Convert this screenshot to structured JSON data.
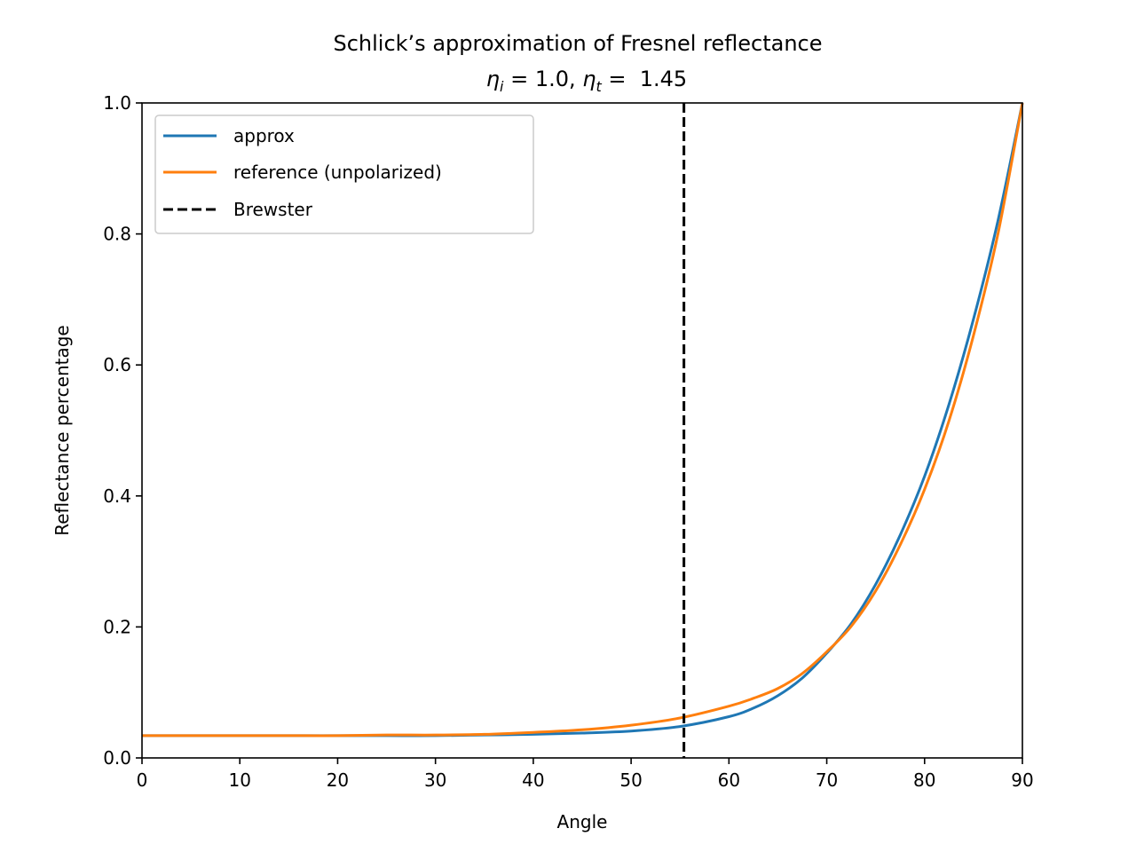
{
  "chart_data": {
    "type": "line",
    "title": "Schlick’s approximation of Fresnel reflectance",
    "subtitle": {
      "eta_i_symbol": "η",
      "eta_i_sub": "i",
      "eta_i_rest": " = 1.0, ",
      "eta_t_symbol": "η",
      "eta_t_sub": "t",
      "eta_t_rest": " =  1.45"
    },
    "xlabel": "Angle",
    "ylabel": "Reflectance percentage",
    "xlim": [
      0,
      90
    ],
    "ylim": [
      0,
      1.0
    ],
    "xticks": [
      0,
      10,
      20,
      30,
      40,
      50,
      60,
      70,
      80,
      90
    ],
    "xtick_labels": [
      "0",
      "10",
      "20",
      "30",
      "40",
      "50",
      "60",
      "70",
      "80",
      "90"
    ],
    "yticks": [
      0.0,
      0.2,
      0.4,
      0.6,
      0.8,
      1.0
    ],
    "ytick_labels": [
      "0.0",
      "0.2",
      "0.4",
      "0.6",
      "0.8",
      "1.0"
    ],
    "grid": false,
    "legend_placement": "top-left",
    "x": [
      0,
      5,
      10,
      15,
      20,
      25,
      30,
      35,
      40,
      45,
      50,
      55,
      60,
      62.5,
      65,
      67.5,
      70,
      72.5,
      75,
      77.5,
      80,
      82.5,
      85,
      87.5,
      90
    ],
    "series": [
      {
        "name": "approx",
        "color": "#1f77b4",
        "style": "solid",
        "values": [
          0.034,
          0.034,
          0.034,
          0.034,
          0.034,
          0.034,
          0.034,
          0.035,
          0.036,
          0.038,
          0.041,
          0.048,
          0.063,
          0.076,
          0.095,
          0.122,
          0.16,
          0.205,
          0.265,
          0.34,
          0.43,
          0.54,
          0.67,
          0.82,
          1.0
        ]
      },
      {
        "name": "reference (unpolarized)",
        "color": "#ff7f0e",
        "style": "solid",
        "values": [
          0.034,
          0.034,
          0.034,
          0.034,
          0.034,
          0.035,
          0.035,
          0.036,
          0.039,
          0.043,
          0.05,
          0.061,
          0.079,
          0.091,
          0.106,
          0.129,
          0.162,
          0.201,
          0.255,
          0.325,
          0.41,
          0.515,
          0.645,
          0.8,
          1.0
        ]
      }
    ],
    "vlines": [
      {
        "name": "Brewster",
        "x": 55.4,
        "color": "#000000",
        "style": "dashed"
      }
    ]
  }
}
